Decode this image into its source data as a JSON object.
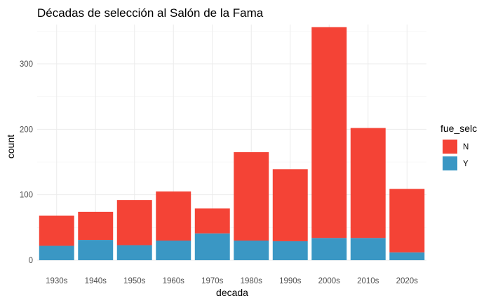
{
  "chart_data": {
    "type": "bar",
    "stacked": true,
    "title": "Décadas de selección al Salón de la Fama",
    "xlabel": "decada",
    "ylabel": "count",
    "categories": [
      "1930s",
      "1940s",
      "1950s",
      "1960s",
      "1970s",
      "1980s",
      "1990s",
      "2000s",
      "2010s",
      "2020s"
    ],
    "series": [
      {
        "name": "Y",
        "color": "#3A97C4",
        "values": [
          22,
          31,
          23,
          30,
          41,
          30,
          29,
          34,
          34,
          12
        ]
      },
      {
        "name": "N",
        "color": "#F44336",
        "values": [
          46,
          43,
          69,
          75,
          38,
          135,
          110,
          322,
          168,
          97
        ]
      }
    ],
    "ylim": [
      0,
      360
    ],
    "yticks": [
      0,
      100,
      200,
      300
    ],
    "grid": true,
    "legend": {
      "title": "fue_selc",
      "position": "right",
      "entries": [
        "N",
        "Y"
      ]
    }
  }
}
